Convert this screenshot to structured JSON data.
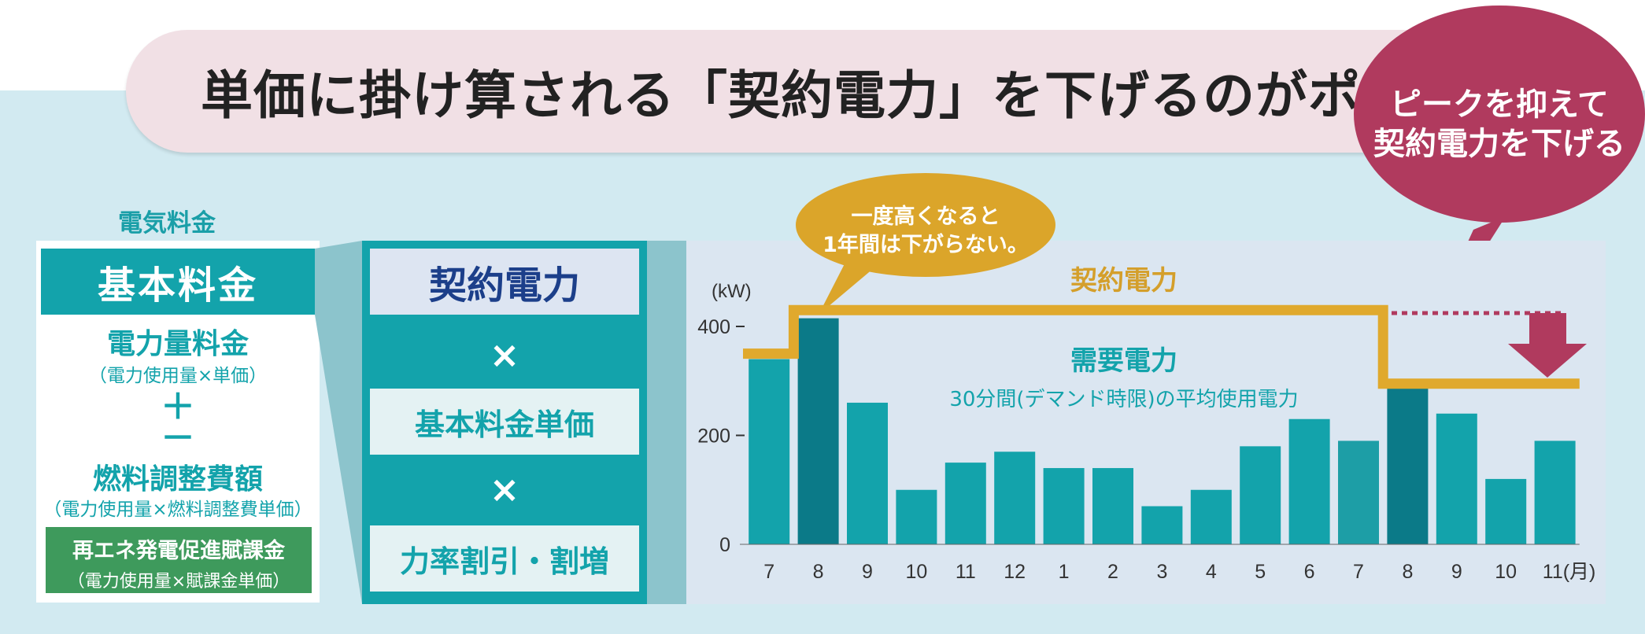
{
  "title": "単価に掛け算される「契約電力」を下げるのがポイント",
  "callout_peak": [
    "ピークを抑えて",
    "契約電力を下げる"
  ],
  "callout_once": [
    "一度高くなると",
    "1年間は下がらない。"
  ],
  "fee": {
    "label": "電気料金",
    "basic": "基本料金",
    "energy": "電力量料金",
    "energy_note": "（電力使用量×単価）",
    "plus": "＋",
    "minus": "－",
    "fuel": "燃料調整費額",
    "fuel_note": "（電力使用量×燃料調整費単価）",
    "renewable": "再エネ発電促進賦課金",
    "renewable_note": "（電力使用量×賦課金単価）"
  },
  "formula": {
    "contract": "契約電力",
    "times1": "×",
    "unit_price": "基本料金単価",
    "times2": "×",
    "power_factor": "力率割引・割増"
  },
  "chart_data": {
    "type": "bar",
    "ylabel": "(kW)",
    "ylim": [
      0,
      400
    ],
    "yticks": [
      "400",
      "200",
      "0"
    ],
    "categories": [
      "7",
      "8",
      "9",
      "10",
      "11",
      "12",
      "1",
      "2",
      "3",
      "4",
      "5",
      "6",
      "7",
      "8",
      "9",
      "10",
      "11(月)"
    ],
    "series": [
      {
        "name": "需要電力",
        "values": [
          340,
          415,
          260,
          100,
          150,
          170,
          140,
          140,
          70,
          100,
          180,
          230,
          190,
          290,
          240,
          120,
          190
        ]
      }
    ],
    "contract_line": [
      350,
      430,
      430,
      430,
      430,
      430,
      430,
      430,
      430,
      430,
      430,
      430,
      430,
      295,
      295,
      295,
      295
    ],
    "contract_label": "契約電力",
    "demand_label": "需要電力",
    "demand_note": "30分間(デマンド時限)の平均使用電力",
    "highlight_indices": [
      1,
      13
    ],
    "colors": {
      "bar": "#13a3ab",
      "bar_highlight": "#0b7a88",
      "bar_alt": "#1d9ea6",
      "contract": "#e0a92d",
      "arrow": "#b03a5e"
    }
  },
  "colors": {
    "teal": "#13a3ab",
    "green": "#3e9a5c",
    "pink_callout": "#b03a5e",
    "gold_callout": "#dba52a",
    "background": "#d2eaf1",
    "banner": "#f1e0e5"
  }
}
